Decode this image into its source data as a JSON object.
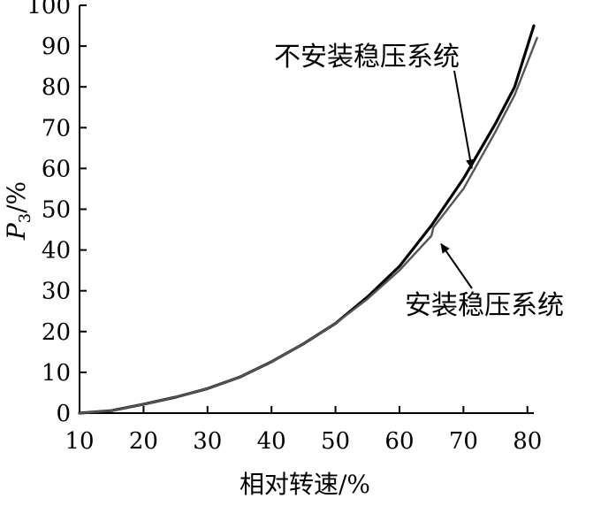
{
  "chart_data": {
    "type": "line",
    "title": "",
    "xlabel": "相对转速/%",
    "ylabel": {
      "main": "P",
      "subscript": "3",
      "suffix": "/%"
    },
    "xlim": [
      10,
      81
    ],
    "ylim": [
      0,
      100
    ],
    "xticks": [
      10,
      20,
      30,
      40,
      50,
      60,
      70,
      80
    ],
    "yticks": [
      0,
      10,
      20,
      30,
      40,
      50,
      60,
      70,
      80,
      90,
      100
    ],
    "grid": false,
    "series": [
      {
        "name": "不安装稳压系统",
        "color": "#000000",
        "x": [
          10,
          15,
          20,
          25,
          30,
          35,
          40,
          45,
          50,
          55,
          60,
          65,
          70,
          75,
          78,
          81
        ],
        "y": [
          0,
          0.6,
          2.2,
          3.9,
          6,
          8.8,
          12.6,
          17,
          22,
          28.5,
          36,
          46,
          57.5,
          71,
          80,
          95
        ]
      },
      {
        "name": "安装稳压系统",
        "color": "#555555",
        "x": [
          10,
          15,
          20,
          25,
          30,
          35,
          40,
          45,
          50,
          55,
          60,
          65,
          65.3,
          70,
          75,
          78,
          81.5
        ],
        "y": [
          0,
          0.6,
          2.2,
          3.9,
          6,
          8.8,
          12.6,
          17,
          22,
          28,
          35,
          43.5,
          45.5,
          55,
          69,
          78,
          92
        ]
      }
    ],
    "annotations": [
      {
        "text": "不安装稳压系统",
        "series": 0
      },
      {
        "text": "安装稳压系统",
        "series": 1
      }
    ]
  }
}
